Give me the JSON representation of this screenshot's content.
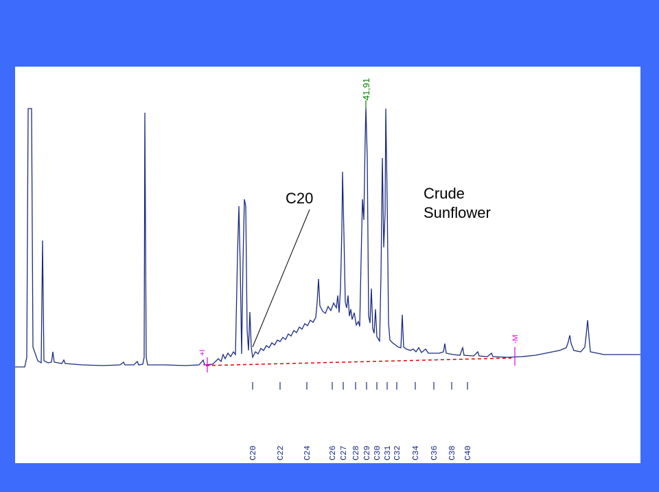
{
  "annotations": {
    "c20_label": "C20",
    "sample_line1": "Crude",
    "sample_line2": "Sunflower"
  },
  "colors": {
    "background": "#3d6cfc",
    "trace": "#1a2a80",
    "baseline": "#e00000",
    "marker": "#e000e0",
    "peak_label": "#008000",
    "tick_label": "#1a2a80"
  },
  "chart_data": {
    "type": "line",
    "title": "",
    "xlabel": "",
    "ylabel": "",
    "peak_label": "41,91",
    "integration_markers": [
      "+I",
      "-M"
    ],
    "carbon_ticks": [
      "C20",
      "C22",
      "C24",
      "C26",
      "C27",
      "C28",
      "C29",
      "C30",
      "C31",
      "C32",
      "C34",
      "C36",
      "C38",
      "C40"
    ],
    "trace": [
      [
        22,
        534
      ],
      [
        36,
        534
      ],
      [
        39,
        520
      ],
      [
        41,
        158
      ],
      [
        46,
        158
      ],
      [
        48,
        505
      ],
      [
        55,
        525
      ],
      [
        60,
        528
      ],
      [
        62,
        350
      ],
      [
        64,
        525
      ],
      [
        70,
        528
      ],
      [
        75,
        527
      ],
      [
        77,
        512
      ],
      [
        79,
        527
      ],
      [
        90,
        529
      ],
      [
        93,
        524
      ],
      [
        95,
        529
      ],
      [
        120,
        531
      ],
      [
        150,
        532
      ],
      [
        175,
        531
      ],
      [
        180,
        527
      ],
      [
        182,
        531
      ],
      [
        195,
        531
      ],
      [
        200,
        526
      ],
      [
        202,
        531
      ],
      [
        208,
        530
      ],
      [
        210,
        520
      ],
      [
        211,
        164
      ],
      [
        213,
        520
      ],
      [
        215,
        531
      ],
      [
        240,
        531
      ],
      [
        270,
        532
      ],
      [
        290,
        531
      ],
      [
        296,
        524
      ],
      [
        298,
        531
      ],
      [
        310,
        530
      ],
      [
        318,
        522
      ],
      [
        322,
        526
      ],
      [
        325,
        516
      ],
      [
        328,
        522
      ],
      [
        332,
        514
      ],
      [
        336,
        519
      ],
      [
        340,
        512
      ],
      [
        343,
        516
      ],
      [
        346,
        370
      ],
      [
        348,
        300
      ],
      [
        350,
        390
      ],
      [
        352,
        515
      ],
      [
        354,
        380
      ],
      [
        356,
        290
      ],
      [
        358,
        300
      ],
      [
        360,
        480
      ],
      [
        362,
        510
      ],
      [
        364,
        454
      ],
      [
        366,
        505
      ],
      [
        368,
        520
      ],
      [
        372,
        512
      ],
      [
        376,
        515
      ],
      [
        380,
        507
      ],
      [
        384,
        510
      ],
      [
        388,
        503
      ],
      [
        392,
        506
      ],
      [
        396,
        499
      ],
      [
        400,
        502
      ],
      [
        404,
        495
      ],
      [
        408,
        497
      ],
      [
        412,
        491
      ],
      [
        416,
        494
      ],
      [
        420,
        486
      ],
      [
        424,
        489
      ],
      [
        428,
        481
      ],
      [
        432,
        484
      ],
      [
        436,
        476
      ],
      [
        440,
        479
      ],
      [
        444,
        471
      ],
      [
        448,
        474
      ],
      [
        452,
        466
      ],
      [
        456,
        469
      ],
      [
        460,
        462
      ],
      [
        462,
        440
      ],
      [
        464,
        406
      ],
      [
        466,
        445
      ],
      [
        470,
        453
      ],
      [
        474,
        456
      ],
      [
        478,
        446
      ],
      [
        482,
        452
      ],
      [
        486,
        441
      ],
      [
        490,
        448
      ],
      [
        492,
        430
      ],
      [
        494,
        455
      ],
      [
        496,
        420
      ],
      [
        498,
        335
      ],
      [
        499,
        250
      ],
      [
        501,
        340
      ],
      [
        503,
        440
      ],
      [
        505,
        448
      ],
      [
        507,
        430
      ],
      [
        509,
        460
      ],
      [
        511,
        450
      ],
      [
        513,
        465
      ],
      [
        516,
        455
      ],
      [
        519,
        473
      ],
      [
        522,
        468
      ],
      [
        524,
        475
      ],
      [
        526,
        380
      ],
      [
        528,
        290
      ],
      [
        530,
        320
      ],
      [
        532,
        200
      ],
      [
        533,
        157
      ],
      [
        535,
        230
      ],
      [
        537,
        460
      ],
      [
        539,
        470
      ],
      [
        541,
        420
      ],
      [
        543,
        478
      ],
      [
        545,
        485
      ],
      [
        547,
        450
      ],
      [
        549,
        490
      ],
      [
        551,
        493
      ],
      [
        553,
        497
      ],
      [
        555,
        400
      ],
      [
        557,
        230
      ],
      [
        559,
        360
      ],
      [
        561,
        310
      ],
      [
        562,
        158
      ],
      [
        564,
        290
      ],
      [
        566,
        470
      ],
      [
        568,
        495
      ],
      [
        572,
        499
      ],
      [
        576,
        502
      ],
      [
        580,
        505
      ],
      [
        584,
        506
      ],
      [
        586,
        458
      ],
      [
        588,
        505
      ],
      [
        592,
        508
      ],
      [
        598,
        510
      ],
      [
        602,
        508
      ],
      [
        606,
        512
      ],
      [
        610,
        506
      ],
      [
        614,
        513
      ],
      [
        620,
        508
      ],
      [
        624,
        514
      ],
      [
        630,
        514
      ],
      [
        640,
        514
      ],
      [
        646,
        512
      ],
      [
        648,
        500
      ],
      [
        650,
        514
      ],
      [
        660,
        516
      ],
      [
        670,
        517
      ],
      [
        674,
        506
      ],
      [
        676,
        517
      ],
      [
        690,
        518
      ],
      [
        696,
        512
      ],
      [
        698,
        518
      ],
      [
        710,
        519
      ],
      [
        716,
        514
      ],
      [
        718,
        519
      ],
      [
        740,
        520
      ],
      [
        760,
        519
      ],
      [
        780,
        517
      ],
      [
        800,
        513
      ],
      [
        815,
        510
      ],
      [
        825,
        506
      ],
      [
        828,
        497
      ],
      [
        830,
        488
      ],
      [
        832,
        500
      ],
      [
        836,
        510
      ],
      [
        846,
        512
      ],
      [
        852,
        505
      ],
      [
        854,
        487
      ],
      [
        856,
        466
      ],
      [
        858,
        490
      ],
      [
        860,
        512
      ],
      [
        870,
        514
      ],
      [
        880,
        516
      ],
      [
        933,
        516
      ]
    ],
    "baseline": [
      [
        300,
        532
      ],
      [
        745,
        521
      ]
    ],
    "peak_label_x": 533,
    "marker_start_x": 302,
    "marker_end_x": 750,
    "tick_x": [
      368,
      408,
      447,
      484,
      500,
      518,
      534,
      549,
      564,
      578,
      605,
      632,
      658,
      681
    ]
  }
}
